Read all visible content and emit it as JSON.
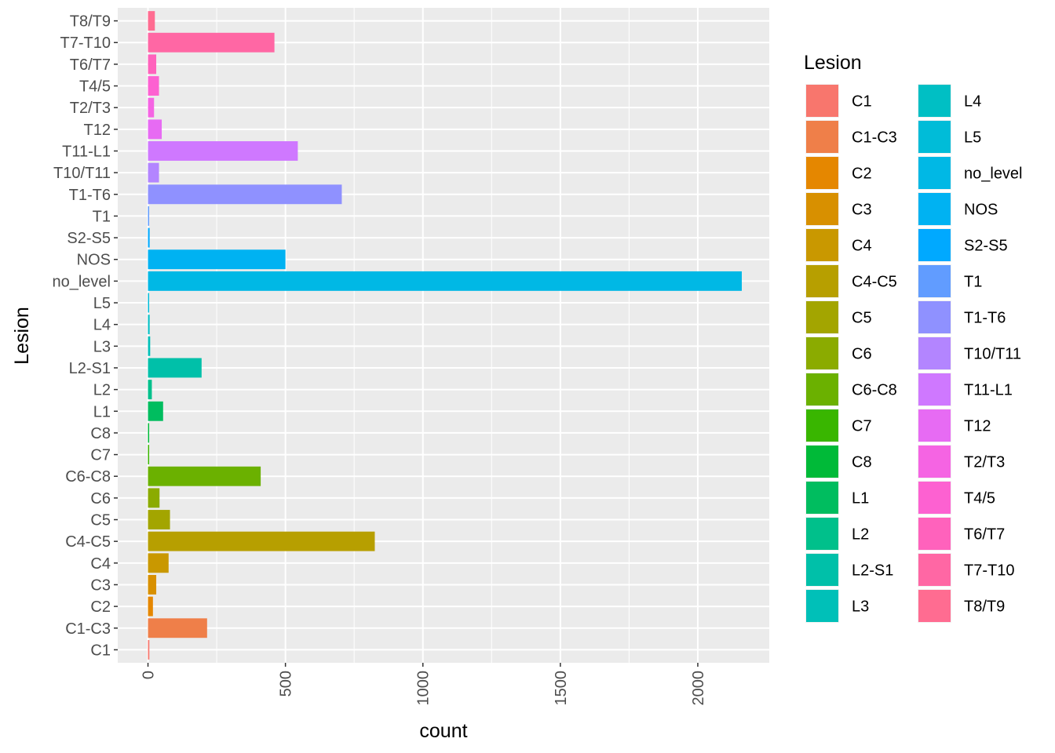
{
  "chart_data": {
    "type": "bar",
    "orientation": "horizontal",
    "xlabel": "count",
    "ylabel": "Lesion",
    "xlim": [
      -110,
      2260
    ],
    "x_ticks": [
      "0",
      "500",
      "1000",
      "1500",
      "2000"
    ],
    "x_tick_values": [
      0,
      500,
      1000,
      1500,
      2000
    ],
    "grid": true,
    "legend": {
      "title": "Lesion",
      "placement": "right",
      "columns": 2
    },
    "categories": [
      "C1",
      "C1-C3",
      "C2",
      "C3",
      "C4",
      "C4-C5",
      "C5",
      "C6",
      "C6-C8",
      "C7",
      "C8",
      "L1",
      "L2",
      "L2-S1",
      "L3",
      "L4",
      "L5",
      "no_level",
      "NOS",
      "S2-S5",
      "T1",
      "T1-T6",
      "T10/T11",
      "T11-L1",
      "T12",
      "T2/T3",
      "T4/5",
      "T6/T7",
      "T7-T10",
      "T8/T9"
    ],
    "values": [
      5,
      215,
      18,
      30,
      75,
      825,
      80,
      42,
      410,
      4,
      4,
      55,
      14,
      195,
      8,
      6,
      4,
      2160,
      500,
      6,
      3,
      705,
      40,
      545,
      50,
      22,
      40,
      30,
      460,
      25
    ],
    "colors": [
      "#F8766D",
      "#EF7F49",
      "#E58700",
      "#D89000",
      "#C99800",
      "#B79F00",
      "#A3A500",
      "#8BAB00",
      "#6BB100",
      "#39B600",
      "#00BA38",
      "#00BD5F",
      "#00C08B",
      "#00C0A9",
      "#00C0B8",
      "#00BFC4",
      "#00BCD8",
      "#00B8E5",
      "#00B2F2",
      "#00A9FF",
      "#619CFF",
      "#8F91FF",
      "#B385FF",
      "#CF78FF",
      "#E76BF3",
      "#F564E3",
      "#FD61D1",
      "#FF62BC",
      "#FF67A4",
      "#FF6C91"
    ]
  }
}
